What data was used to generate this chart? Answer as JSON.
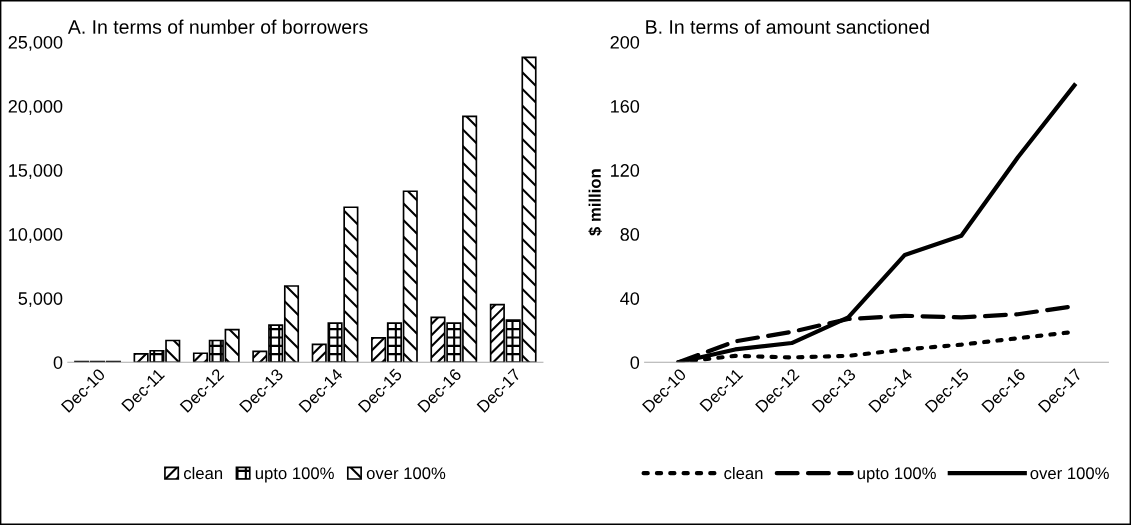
{
  "chart_data": [
    {
      "type": "bar",
      "title": "A. In terms of number of borrowers",
      "categories": [
        "Dec-10",
        "Dec-11",
        "Dec-12",
        "Dec-13",
        "Dec-14",
        "Dec-15",
        "Dec-16",
        "Dec-17"
      ],
      "series": [
        {
          "name": "clean",
          "color": "#000000",
          "values": [
            50,
            650,
            700,
            850,
            1400,
            1900,
            3500,
            4500
          ]
        },
        {
          "name": "upto 100%",
          "color": "#000000",
          "values": [
            50,
            900,
            1700,
            2900,
            3050,
            3050,
            3050,
            3300
          ]
        },
        {
          "name": "over 100%",
          "color": "#000000",
          "values": [
            50,
            1700,
            2550,
            5950,
            12100,
            13350,
            19200,
            23800
          ]
        }
      ],
      "ylim": [
        0,
        25000
      ],
      "yticks": [
        {
          "value": 0,
          "label": "0"
        },
        {
          "value": 5000,
          "label": "5,000"
        },
        {
          "value": 10000,
          "label": "10,000"
        },
        {
          "value": 15000,
          "label": "15,000"
        },
        {
          "value": 20000,
          "label": "20,000"
        },
        {
          "value": 25000,
          "label": "25,000"
        }
      ],
      "legend": "bottom",
      "grid": false
    },
    {
      "type": "line",
      "title": "B. In terms of amount sanctioned",
      "ylabel": "$ million",
      "categories": [
        "Dec-10",
        "Dec-11",
        "Dec-12",
        "Dec-13",
        "Dec-14",
        "Dec-15",
        "Dec-16",
        "Dec-17"
      ],
      "series": [
        {
          "name": "clean",
          "color": "#000000",
          "line_style": "dotted",
          "values": [
            0,
            4,
            3,
            4,
            8,
            11,
            15,
            19
          ]
        },
        {
          "name": "upto 100%",
          "color": "#000000",
          "line_style": "dashed",
          "values": [
            0,
            13,
            19,
            27,
            29,
            28,
            30,
            35
          ]
        },
        {
          "name": "over 100%",
          "color": "#000000",
          "line_style": "solid",
          "values": [
            0,
            8,
            12,
            28,
            67,
            79,
            128,
            173
          ]
        }
      ],
      "ylim": [
        0,
        200
      ],
      "yticks": [
        0,
        40,
        80,
        120,
        160,
        200
      ],
      "legend": "bottom",
      "grid": false,
      "marker": "none"
    }
  ]
}
